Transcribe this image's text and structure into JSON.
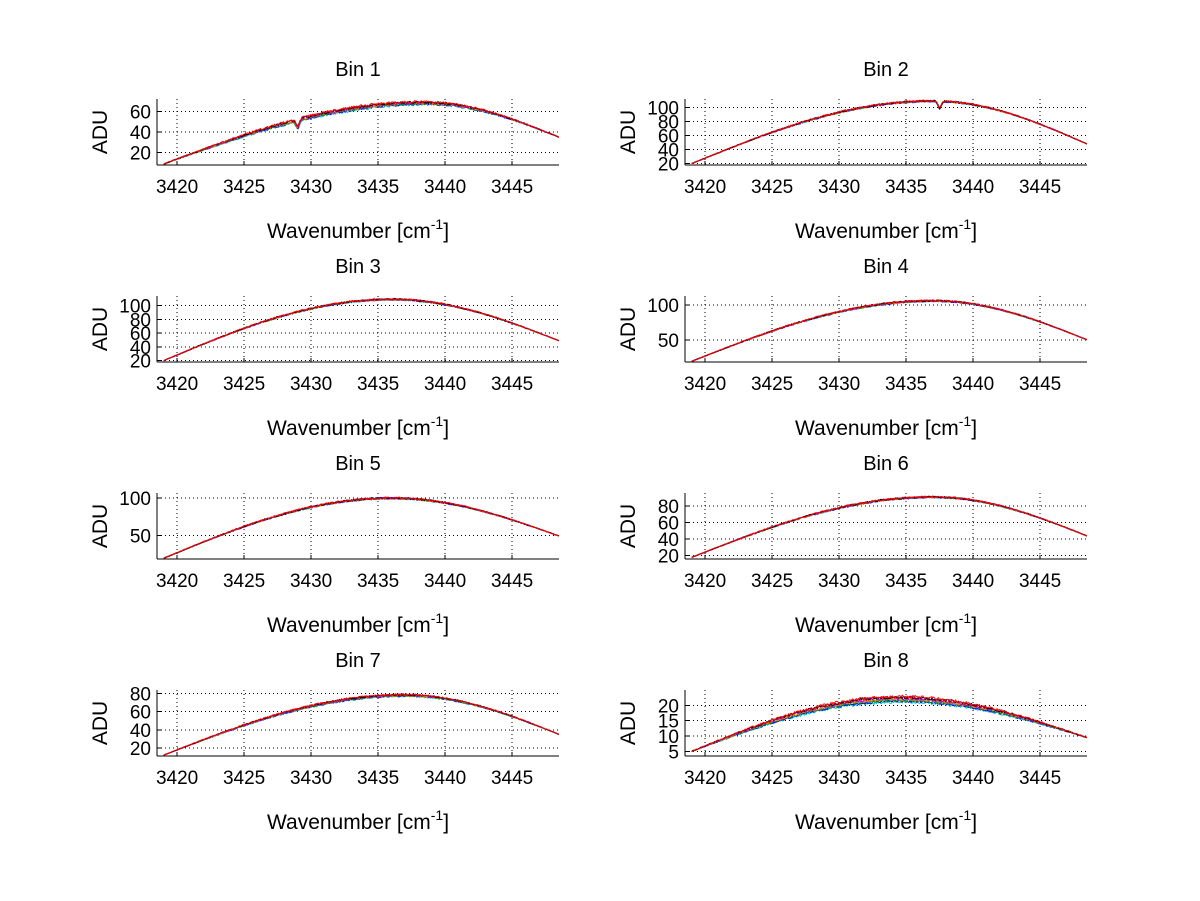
{
  "figure": {
    "background": "#ffffff",
    "series_colors": [
      "#00bfbf",
      "#0000ff",
      "#00a000",
      "#ff8000",
      "#bf00bf",
      "#000000",
      "#ff0000"
    ]
  },
  "chart_data": [
    {
      "type": "line",
      "title": "Bin 1",
      "xlabel": "Wavenumber [cm",
      "xlabel_sup": "-1",
      "xlabel_end": "]",
      "ylabel": "ADU",
      "xlim": [
        3418.5,
        3448.5
      ],
      "ylim": [
        8,
        72
      ],
      "grid": true,
      "xticks": [
        3420,
        3425,
        3430,
        3435,
        3440,
        3445
      ],
      "yticks": [
        20,
        40,
        60
      ],
      "profile": {
        "x0": 3419,
        "x1": 3448.5,
        "start": 9,
        "end": 35,
        "peak_x": 3438.5,
        "peak": 68
      },
      "features": [
        {
          "x": 3429.0,
          "depth": 7
        }
      ],
      "noise": 1.2,
      "spread": 3,
      "series_count": 7
    },
    {
      "type": "line",
      "title": "Bin 2",
      "xlabel": "Wavenumber [cm",
      "xlabel_sup": "-1",
      "xlabel_end": "]",
      "ylabel": "ADU",
      "xlim": [
        3418.5,
        3448.5
      ],
      "ylim": [
        18,
        112
      ],
      "grid": true,
      "xticks": [
        3420,
        3425,
        3430,
        3435,
        3440,
        3445
      ],
      "yticks": [
        20,
        40,
        60,
        80,
        100
      ],
      "profile": {
        "x0": 3419,
        "x1": 3448.5,
        "start": 20,
        "end": 48,
        "peak_x": 3437.0,
        "peak": 109
      },
      "features": [
        {
          "x": 3437.5,
          "depth": 10
        }
      ],
      "noise": 1.3,
      "spread": 1,
      "series_count": 7
    },
    {
      "type": "line",
      "title": "Bin 3",
      "xlabel": "Wavenumber [cm",
      "xlabel_sup": "-1",
      "xlabel_end": "]",
      "ylabel": "ADU",
      "xlim": [
        3418.5,
        3448.5
      ],
      "ylim": [
        18,
        114
      ],
      "grid": true,
      "xticks": [
        3420,
        3425,
        3430,
        3435,
        3440,
        3445
      ],
      "yticks": [
        20,
        40,
        60,
        80,
        100
      ],
      "profile": {
        "x0": 3419,
        "x1": 3448.5,
        "start": 20,
        "end": 49,
        "peak_x": 3436.0,
        "peak": 109
      },
      "features": [],
      "noise": 1.3,
      "spread": 1,
      "series_count": 7
    },
    {
      "type": "line",
      "title": "Bin 4",
      "xlabel": "Wavenumber [cm",
      "xlabel_sup": "-1",
      "xlabel_end": "]",
      "ylabel": "ADU",
      "xlim": [
        3418.5,
        3448.5
      ],
      "ylim": [
        18,
        113
      ],
      "grid": true,
      "xticks": [
        3420,
        3425,
        3430,
        3435,
        3440,
        3445
      ],
      "yticks": [
        50,
        100
      ],
      "profile": {
        "x0": 3419,
        "x1": 3448.5,
        "start": 19,
        "end": 50,
        "peak_x": 3437.0,
        "peak": 106
      },
      "features": [],
      "noise": 1.3,
      "spread": 1,
      "series_count": 7
    },
    {
      "type": "line",
      "title": "Bin 5",
      "xlabel": "Wavenumber [cm",
      "xlabel_sup": "-1",
      "xlabel_end": "]",
      "ylabel": "ADU",
      "xlim": [
        3418.5,
        3448.5
      ],
      "ylim": [
        18,
        107
      ],
      "grid": true,
      "xticks": [
        3420,
        3425,
        3430,
        3435,
        3440,
        3445
      ],
      "yticks": [
        50,
        100
      ],
      "profile": {
        "x0": 3419,
        "x1": 3448.5,
        "start": 19,
        "end": 49,
        "peak_x": 3436.0,
        "peak": 100
      },
      "features": [],
      "noise": 1.3,
      "spread": 1,
      "series_count": 7
    },
    {
      "type": "line",
      "title": "Bin 6",
      "xlabel": "Wavenumber [cm",
      "xlabel_sup": "-1",
      "xlabel_end": "]",
      "ylabel": "ADU",
      "xlim": [
        3418.5,
        3448.5
      ],
      "ylim": [
        16,
        96
      ],
      "grid": true,
      "xticks": [
        3420,
        3425,
        3430,
        3435,
        3440,
        3445
      ],
      "yticks": [
        20,
        40,
        60,
        80
      ],
      "profile": {
        "x0": 3419,
        "x1": 3448.5,
        "start": 18,
        "end": 44,
        "peak_x": 3437.0,
        "peak": 91
      },
      "features": [],
      "noise": 1.1,
      "spread": 1,
      "series_count": 7
    },
    {
      "type": "line",
      "title": "Bin 7",
      "xlabel": "Wavenumber [cm",
      "xlabel_sup": "-1",
      "xlabel_end": "]",
      "ylabel": "ADU",
      "xlim": [
        3418.5,
        3448.5
      ],
      "ylim": [
        11,
        84
      ],
      "grid": true,
      "xticks": [
        3420,
        3425,
        3430,
        3435,
        3440,
        3445
      ],
      "yticks": [
        20,
        40,
        60,
        80
      ],
      "profile": {
        "x0": 3419,
        "x1": 3448.5,
        "start": 12,
        "end": 35,
        "peak_x": 3437.0,
        "peak": 78
      },
      "features": [],
      "noise": 1.0,
      "spread": 2,
      "series_count": 7
    },
    {
      "type": "line",
      "title": "Bin 8",
      "xlabel": "Wavenumber [cm",
      "xlabel_sup": "-1",
      "xlabel_end": "]",
      "ylabel": "ADU",
      "xlim": [
        3418.5,
        3448.5
      ],
      "ylim": [
        3.5,
        25
      ],
      "grid": true,
      "xticks": [
        3420,
        3425,
        3430,
        3435,
        3440,
        3445
      ],
      "yticks": [
        5,
        10,
        15,
        20
      ],
      "profile": {
        "x0": 3419,
        "x1": 3448.5,
        "start": 5,
        "end": 9.5,
        "peak_x": 3434.5,
        "peak": 22
      },
      "features": [],
      "noise": 0.45,
      "spread": 1.8,
      "series_count": 7
    }
  ]
}
